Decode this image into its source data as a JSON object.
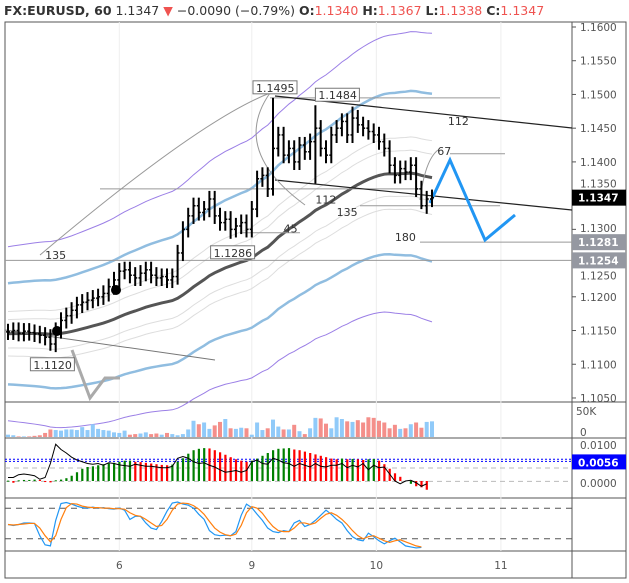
{
  "header": {
    "symbol": "FX:EURUSD, 60",
    "last": "1.1347",
    "change": "−0.0090 (−0.79%)",
    "o_label": "O:",
    "o": "1.1340",
    "h_label": "H:",
    "h": "1.1367",
    "l_label": "L:",
    "l": "1.1338",
    "c_label": "C:",
    "c": "1.1347"
  },
  "colors": {
    "up_vol": "#90caf9",
    "down_vol": "#f48f8a",
    "hist_up": "#008000",
    "hist_down": "#ff0000",
    "macd_signal": "#0000ff",
    "stoch_k": "#2196f3",
    "stoch_d": "#ff7f0e",
    "bb": "#90bde0",
    "outer": "#9b7fe6",
    "ma": "#555555",
    "zigzag": "#2196f3",
    "last_tag": "#000000",
    "level_tag": "#9598a1",
    "macd_tag": "#0000ff"
  },
  "chart_data": {
    "type": "ohlc",
    "price_axis": {
      "ylim": [
        1.105,
        1.16
      ],
      "ticks": [
        "1.1600",
        "1.1550",
        "1.1500",
        "1.1450",
        "1.1400",
        "1.1350",
        "1.1300",
        "1.1250",
        "1.1200",
        "1.1150",
        "1.1100",
        "1.1050"
      ]
    },
    "price_tags": [
      {
        "label": "1.1347",
        "kind": "last",
        "value": 1.1347
      },
      {
        "label": "1.1281",
        "kind": "level",
        "value": 1.1281
      },
      {
        "label": "1.1254",
        "kind": "level",
        "value": 1.1254
      }
    ],
    "time_axis": {
      "labels": [
        {
          "text": "6",
          "bar": 21
        },
        {
          "text": "9",
          "bar": 46
        },
        {
          "text": "10",
          "bar": 69.5
        },
        {
          "text": "11",
          "bar": 93
        }
      ]
    },
    "close": [
      1.1148,
      1.115,
      1.1146,
      1.1149,
      1.1147,
      1.1145,
      1.1143,
      1.114,
      1.113,
      1.115,
      1.1165,
      1.1172,
      1.118,
      1.1188,
      1.1192,
      1.1195,
      1.1198,
      1.12,
      1.1205,
      1.1215,
      1.1225,
      1.1238,
      1.124,
      1.1232,
      1.1228,
      1.1235,
      1.124,
      1.1232,
      1.1228,
      1.123,
      1.1225,
      1.123,
      1.1265,
      1.13,
      1.132,
      1.1335,
      1.1325,
      1.133,
      1.1345,
      1.132,
      1.131,
      1.1315,
      1.13,
      1.1305,
      1.131,
      1.13,
      1.133,
      1.1375,
      1.138,
      1.136,
      1.142,
      1.144,
      1.141,
      1.142,
      1.14,
      1.1425,
      1.1415,
      1.143,
      1.145,
      1.142,
      1.141,
      1.144,
      1.145,
      1.146,
      1.144,
      1.1465,
      1.1455,
      1.145,
      1.1445,
      1.144,
      1.143,
      1.142,
      1.1395,
      1.138,
      1.139,
      1.1385,
      1.1395,
      1.136,
      1.1335,
      1.1345,
      1.1347
    ],
    "wick_overrides": [
      {
        "bar": 8,
        "low": 1.112
      },
      {
        "bar": 50,
        "high": 1.1495,
        "low": 1.135
      },
      {
        "bar": 58,
        "high": 1.1484,
        "low": 1.1368
      },
      {
        "bar": 42,
        "low": 1.1286
      },
      {
        "bar": 65,
        "high": 1.1482
      },
      {
        "bar": 78,
        "low": 1.133
      }
    ],
    "annotations": [
      {
        "text": "1.1495",
        "bar": 50,
        "price": 1.1495,
        "boxed": true
      },
      {
        "text": "1.1484",
        "bar": 58,
        "price": 1.1484,
        "boxed": true
      },
      {
        "text": "1.1286",
        "bar": 42,
        "price": 1.1286,
        "boxed": true
      },
      {
        "text": "1.1120",
        "bar": 8,
        "price": 1.112,
        "boxed": true
      },
      {
        "text": "112",
        "bar": 83,
        "price": 1.1455
      },
      {
        "text": "67",
        "bar": 81,
        "price": 1.141
      },
      {
        "text": "112",
        "bar": 58,
        "price": 1.1338
      },
      {
        "text": "135",
        "bar": 62,
        "price": 1.132
      },
      {
        "text": "45",
        "bar": 52,
        "price": 1.1295
      },
      {
        "text": "180",
        "bar": 73,
        "price": 1.1283
      },
      {
        "text": "135",
        "bar": 7,
        "price": 1.1256
      }
    ],
    "volume": {
      "axis": [
        "50K",
        "0"
      ],
      "values": [
        4,
        3,
        1,
        1,
        1,
        2,
        3,
        7,
        13,
        12,
        11,
        13,
        13,
        12,
        17,
        12,
        22,
        14,
        12,
        11,
        8,
        7,
        11,
        4,
        5,
        6,
        8,
        5,
        6,
        4,
        7,
        5,
        3,
        5,
        13,
        28,
        22,
        25,
        14,
        20,
        26,
        31,
        15,
        14,
        16,
        15,
        4,
        25,
        12,
        15,
        30,
        18,
        13,
        13,
        21,
        10,
        5,
        15,
        33,
        32,
        23,
        15,
        34,
        31,
        27,
        26,
        29,
        25,
        34,
        33,
        28,
        25,
        15,
        21,
        14,
        15,
        22,
        25,
        16,
        26,
        27,
        28
      ]
    },
    "macd": {
      "axis": [
        "0.0100",
        "0.0000"
      ],
      "tag": "0.0056",
      "hist": [
        0.0001,
        -0.0005,
        0.0002,
        0.0003,
        0.0003,
        0.0004,
        0.0003,
        -0.0003,
        -0.0004,
        0.0002,
        0.0004,
        0.0008,
        0.0015,
        0.0025,
        0.0035,
        0.004,
        0.0042,
        0.0045,
        0.0048,
        0.005,
        0.0052,
        0.0055,
        0.0058,
        0.0058,
        0.0055,
        0.0054,
        0.0052,
        0.005,
        0.0048,
        0.0046,
        0.0045,
        0.0047,
        0.0055,
        0.0065,
        0.0078,
        0.0088,
        0.0092,
        0.0094,
        0.0093,
        0.0088,
        0.0082,
        0.0075,
        0.0068,
        0.0062,
        0.0058,
        0.0055,
        0.0058,
        0.0064,
        0.0072,
        0.008,
        0.0088,
        0.0092,
        0.0093,
        0.0094,
        0.009,
        0.0088,
        0.0084,
        0.008,
        0.0076,
        0.0072,
        0.0068,
        0.0064,
        0.0062,
        0.0064,
        0.0062,
        0.0063,
        0.0062,
        0.006,
        0.0062,
        0.0063,
        0.0058,
        0.0048,
        0.0035,
        0.0022,
        0.0012,
        null,
        -0.0008,
        -0.0015,
        -0.0018,
        -0.0025
      ],
      "line": [
        0.001,
        0.001,
        0.0018,
        0.002,
        0.0018,
        0.0015,
        0.0005,
        0.001,
        0.005,
        0.0105,
        0.009,
        0.008,
        0.0068,
        0.006,
        0.0055,
        0.005,
        0.0048,
        0.005,
        0.0045,
        0.0052,
        0.005,
        0.0046,
        0.0044,
        0.0042,
        0.0048,
        0.0045,
        0.0042,
        0.0042,
        0.004,
        0.0038,
        0.0038,
        0.0042,
        0.0065,
        0.007,
        0.0065,
        0.0055,
        0.005,
        0.0052,
        0.0045,
        0.004,
        0.0032,
        0.0025,
        0.0027,
        0.003,
        0.0025,
        0.003,
        0.0055,
        0.006,
        0.005,
        0.0048,
        0.0065,
        0.006,
        0.0052,
        0.005,
        0.0042,
        0.005,
        0.0045,
        0.004,
        0.005,
        0.0042,
        0.004,
        0.0045,
        0.0045,
        0.005,
        0.0038,
        0.0045,
        0.004,
        0.005,
        0.0032,
        0.0045,
        0.0038,
        0.004,
        0.002,
        0.0,
        -0.0008,
        0.0,
        0.0002,
        -0.0005,
        -0.0015,
        -0.0008
      ],
      "signal_levels": [
        0.0062,
        0.0056
      ]
    },
    "stoch": {
      "levels": [
        80,
        20
      ],
      "k": [
        52,
        50,
        52,
        55,
        55,
        54,
        30,
        12,
        10,
        60,
        93,
        95,
        92,
        88,
        85,
        84,
        86,
        84,
        85,
        83,
        82,
        84,
        80,
        62,
        68,
        68,
        55,
        45,
        42,
        58,
        78,
        94,
        96,
        92,
        90,
        84,
        72,
        62,
        40,
        32,
        30,
        31,
        30,
        38,
        70,
        92,
        85,
        72,
        60,
        45,
        38,
        36,
        40,
        38,
        55,
        60,
        48,
        52,
        60,
        70,
        80,
        72,
        62,
        55,
        40,
        28,
        22,
        20,
        35,
        28,
        20,
        14,
        20,
        25,
        18,
        10,
        8,
        6,
        7
      ],
      "d": [
        52,
        51,
        52,
        53,
        54,
        54,
        45,
        30,
        18,
        30,
        62,
        85,
        93,
        92,
        88,
        86,
        85,
        85,
        84,
        84,
        83,
        83,
        82,
        75,
        70,
        68,
        62,
        55,
        48,
        50,
        62,
        80,
        92,
        94,
        93,
        89,
        82,
        72,
        58,
        45,
        37,
        32,
        30,
        33,
        50,
        75,
        87,
        84,
        74,
        60,
        48,
        40,
        38,
        38,
        45,
        55,
        55,
        52,
        55,
        64,
        72,
        75,
        70,
        62,
        52,
        40,
        30,
        24,
        28,
        30,
        25,
        20,
        17,
        20,
        22,
        18,
        14,
        10,
        8
      ]
    }
  }
}
